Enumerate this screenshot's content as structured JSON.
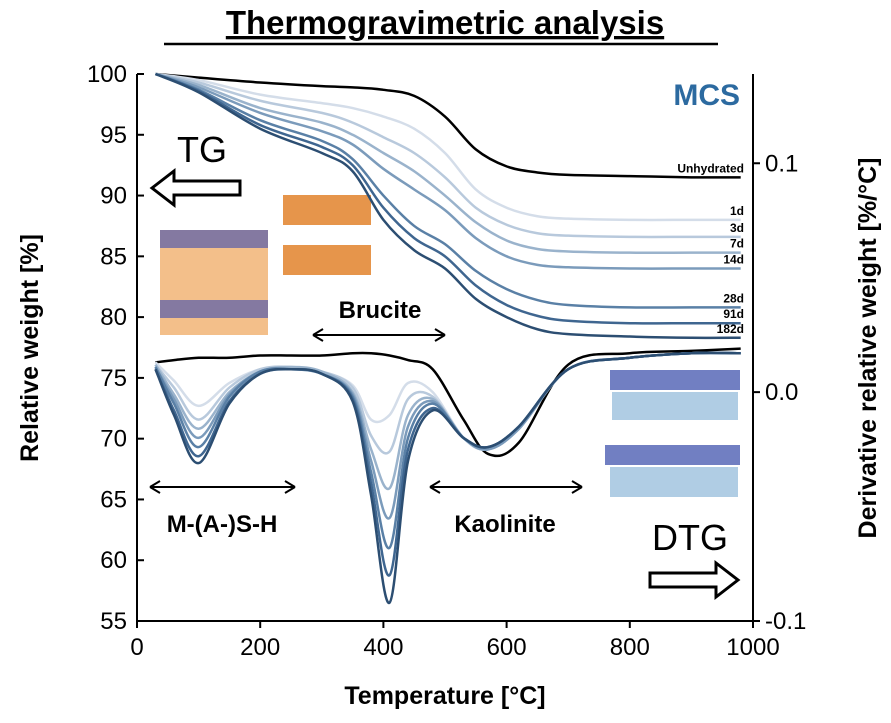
{
  "chart_data": {
    "type": "line",
    "title": "Thermogravimetric analysis",
    "x_label": "Temperature [°C]",
    "y_label": "Relative weight  [%]",
    "y2_label": "Derivative relative weight [%/°C]",
    "xlim": [
      0,
      1000
    ],
    "xticks": [
      0,
      200,
      400,
      600,
      800,
      1000
    ],
    "ylim": [
      55,
      100
    ],
    "yticks": [
      55,
      60,
      65,
      70,
      75,
      80,
      85,
      90,
      95,
      100
    ],
    "y2lim": [
      -0.1,
      0.139
    ],
    "y2ticks": [
      -0.1,
      {
        "value": 0,
        "label": "0.0"
      },
      0.1
    ],
    "x": [
      30,
      100,
      200,
      300,
      350,
      400,
      450,
      500,
      550,
      600,
      650,
      700,
      800,
      900,
      980
    ],
    "series": [
      {
        "name": "Unhydrated",
        "color": "#000000",
        "values": [
          100,
          99.7,
          99.3,
          99.0,
          98.9,
          98.7,
          98.2,
          96.5,
          93.8,
          92.4,
          91.9,
          91.7,
          91.6,
          91.5,
          91.5
        ]
      },
      {
        "name": "1d",
        "color": "#d4dde9",
        "values": [
          100,
          99.5,
          98.3,
          97.6,
          97.2,
          96.5,
          95.5,
          93.5,
          90.5,
          89,
          88.3,
          88.1,
          88,
          88,
          88
        ]
      },
      {
        "name": "3d",
        "color": "#b8c9dc",
        "values": [
          100,
          99.3,
          97.8,
          96.8,
          96,
          94.8,
          93.5,
          91.5,
          89,
          87.6,
          86.9,
          86.7,
          86.6,
          86.6,
          86.6
        ]
      },
      {
        "name": "7d",
        "color": "#9ab3cc",
        "values": [
          100,
          99.1,
          97.2,
          96,
          95,
          93.5,
          92,
          90,
          87.8,
          86.3,
          85.6,
          85.4,
          85.3,
          85.3,
          85.3
        ]
      },
      {
        "name": "14d",
        "color": "#7b9bbb",
        "values": [
          100,
          98.9,
          96.8,
          95.3,
          94.2,
          92.2,
          90.5,
          88.8,
          86.5,
          85,
          84.3,
          84.1,
          84,
          84,
          84
        ]
      },
      {
        "name": "28d",
        "color": "#5a80a6",
        "values": [
          100,
          98.7,
          96.2,
          94.5,
          93,
          90,
          87.5,
          86,
          83.8,
          82.3,
          81.4,
          81,
          80.8,
          80.8,
          80.8
        ]
      },
      {
        "name": "91d",
        "color": "#3f6690",
        "values": [
          100,
          98.6,
          95.8,
          94,
          92.5,
          89,
          86.5,
          85,
          82.6,
          81,
          80.1,
          79.7,
          79.5,
          79.5,
          79.5
        ]
      },
      {
        "name": "182d",
        "color": "#2c4e72",
        "values": [
          100,
          98.5,
          95.5,
          93.5,
          92,
          88,
          85.5,
          84,
          81.5,
          80,
          79,
          78.6,
          78.4,
          78.3,
          78.3
        ]
      }
    ],
    "dtg": {
      "x": [
        30,
        60,
        100,
        150,
        200,
        250,
        300,
        350,
        380,
        410,
        440,
        480,
        530,
        570,
        620,
        700,
        800,
        900,
        980
      ],
      "series": [
        {
          "color": "#000000",
          "values": [
            0.013,
            0.014,
            0.015,
            0.015,
            0.016,
            0.016,
            0.016,
            0.017,
            0.017,
            0.016,
            0.014,
            0.01,
            -0.012,
            -0.027,
            -0.022,
            0.012,
            0.017,
            0.018,
            0.019
          ]
        },
        {
          "color": "#d4dde9",
          "values": [
            0.013,
            0.005,
            -0.006,
            0.004,
            0.01,
            0.011,
            0.009,
            0.003,
            -0.012,
            -0.01,
            0.004,
            0.0,
            -0.02,
            -0.025,
            -0.016,
            0.01,
            0.015,
            0.017,
            0.017
          ]
        },
        {
          "color": "#b8c9dc",
          "values": [
            0.012,
            0.002,
            -0.012,
            0.002,
            0.01,
            0.011,
            0.009,
            0.002,
            -0.019,
            -0.026,
            -0.003,
            -0.002,
            -0.02,
            -0.025,
            -0.016,
            0.01,
            0.015,
            0.017,
            0.017
          ]
        },
        {
          "color": "#9ab3cc",
          "values": [
            0.012,
            -0.001,
            -0.016,
            0.0,
            0.009,
            0.011,
            0.009,
            0.0,
            -0.025,
            -0.042,
            -0.01,
            -0.003,
            -0.02,
            -0.025,
            -0.016,
            0.01,
            0.015,
            0.017,
            0.017
          ]
        },
        {
          "color": "#7b9bbb",
          "values": [
            0.011,
            -0.003,
            -0.02,
            -0.001,
            0.009,
            0.01,
            0.008,
            -0.001,
            -0.03,
            -0.055,
            -0.015,
            -0.004,
            -0.02,
            -0.025,
            -0.016,
            0.01,
            0.015,
            0.017,
            0.017
          ]
        },
        {
          "color": "#5a80a6",
          "values": [
            0.011,
            -0.005,
            -0.024,
            -0.002,
            0.009,
            0.01,
            0.008,
            -0.002,
            -0.035,
            -0.068,
            -0.02,
            -0.005,
            -0.02,
            -0.024,
            -0.015,
            0.01,
            0.015,
            0.017,
            0.017
          ]
        },
        {
          "color": "#3f6690",
          "values": [
            0.01,
            -0.008,
            -0.028,
            -0.004,
            0.008,
            0.01,
            0.008,
            -0.003,
            -0.04,
            -0.08,
            -0.025,
            -0.007,
            -0.02,
            -0.024,
            -0.015,
            0.01,
            0.015,
            0.017,
            0.017
          ]
        },
        {
          "color": "#2c4e72",
          "values": [
            0.01,
            -0.01,
            -0.031,
            -0.005,
            0.008,
            0.01,
            0.008,
            -0.004,
            -0.045,
            -0.092,
            -0.03,
            -0.008,
            -0.02,
            -0.024,
            -0.015,
            0.01,
            0.015,
            0.017,
            0.017
          ]
        }
      ]
    },
    "annotations": [
      "MCS",
      "TG",
      "DTG",
      "Brucite",
      "M-(A-)S-H",
      "Kaolinite"
    ]
  }
}
